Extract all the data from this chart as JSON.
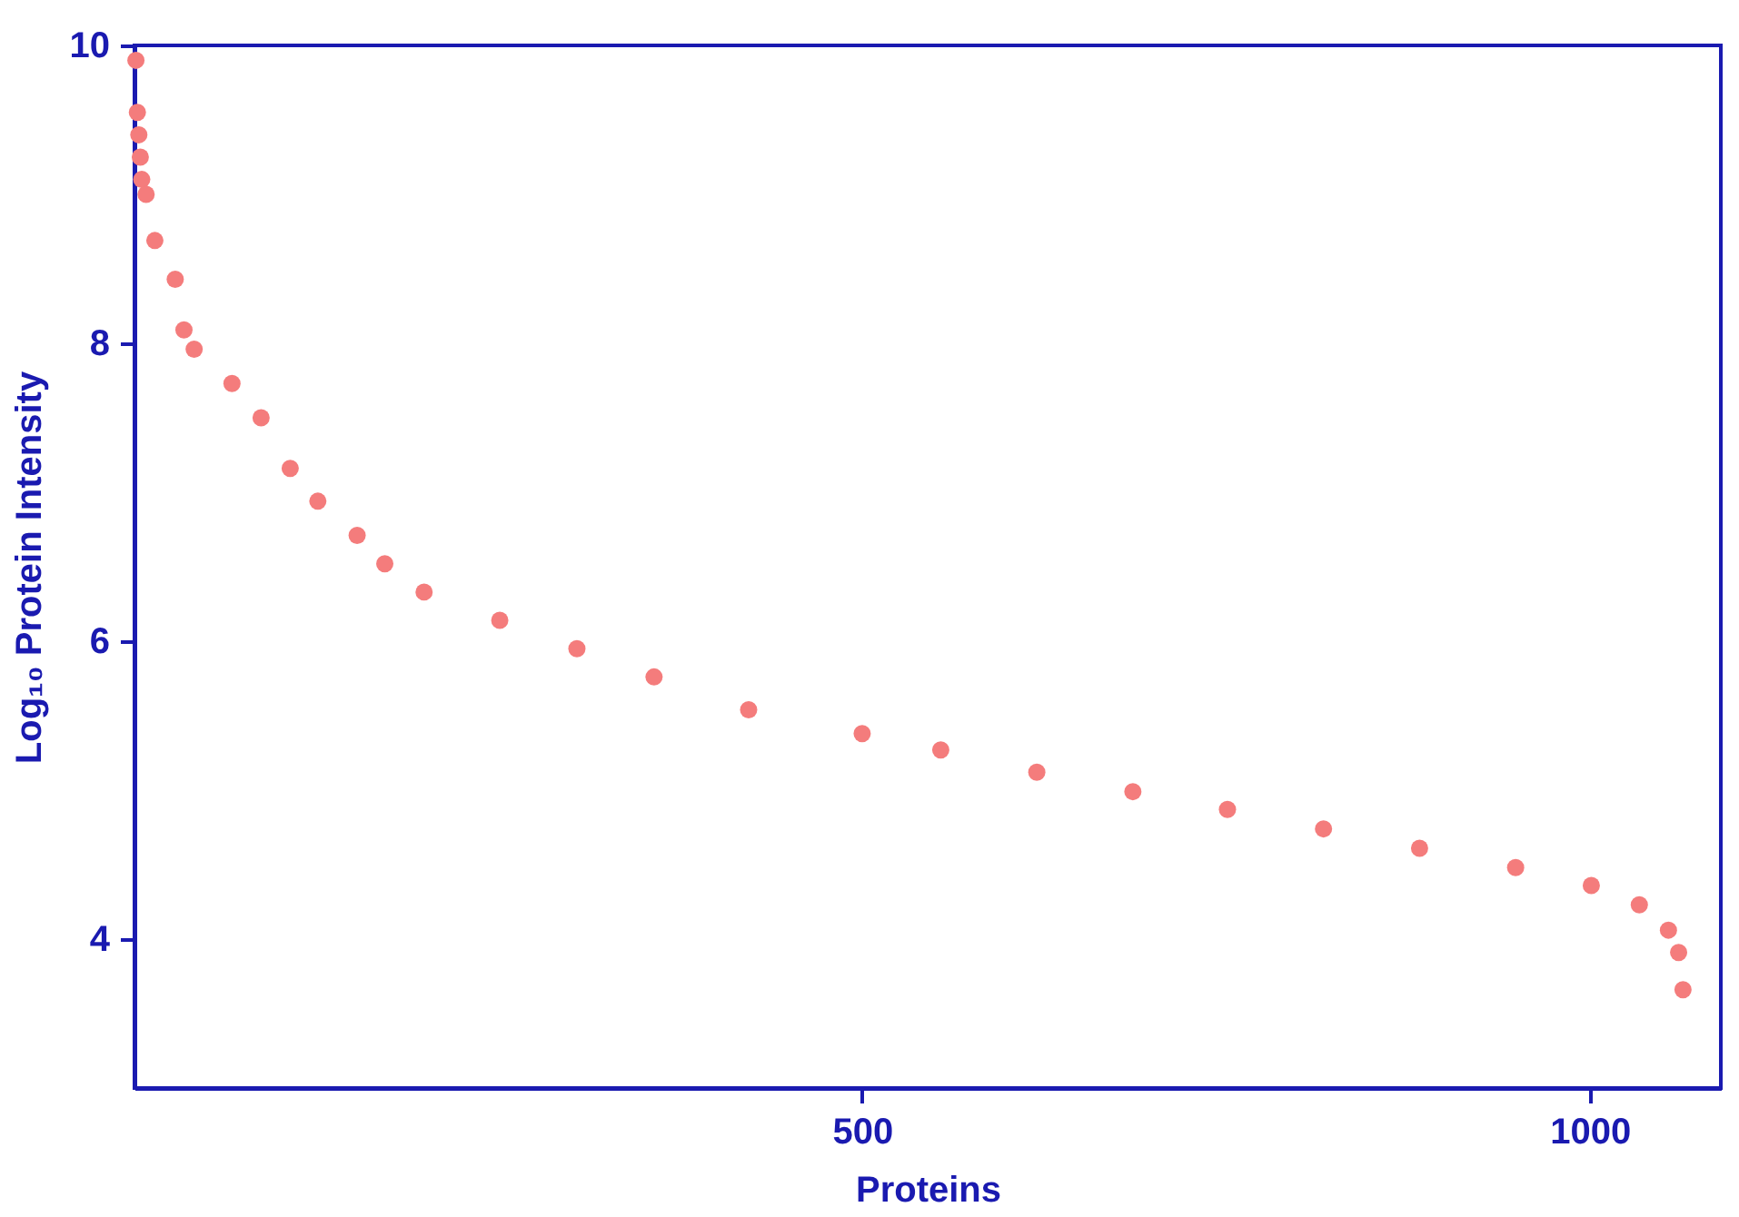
{
  "chart_data": {
    "type": "scatter",
    "xlabel": "Proteins",
    "ylabel": "Log₁₀ Protein Intensity",
    "xlim": [
      0,
      1090
    ],
    "ylim": [
      3,
      10
    ],
    "xticks": [
      500,
      1000
    ],
    "yticks": [
      4,
      6,
      8,
      10
    ],
    "grid": false,
    "legend": false,
    "marker": "circle",
    "series": [
      {
        "color": "#f47c7c",
        "x": [
          1,
          2,
          3,
          4,
          5,
          8,
          14,
          28,
          34,
          41,
          67,
          87,
          107,
          126,
          153,
          172,
          199,
          251,
          304,
          357,
          422,
          500,
          554,
          620,
          686,
          751,
          817,
          883,
          949,
          1001,
          1034,
          1054,
          1061,
          1064
        ],
        "values": [
          9.9,
          9.55,
          9.4,
          9.25,
          9.1,
          9.0,
          8.69,
          8.43,
          8.09,
          7.96,
          7.73,
          7.5,
          7.16,
          6.94,
          6.71,
          6.52,
          6.33,
          6.14,
          5.95,
          5.76,
          5.54,
          5.38,
          5.27,
          5.12,
          4.99,
          4.87,
          4.74,
          4.61,
          4.48,
          4.36,
          4.23,
          4.06,
          3.91,
          3.66
        ]
      }
    ]
  }
}
